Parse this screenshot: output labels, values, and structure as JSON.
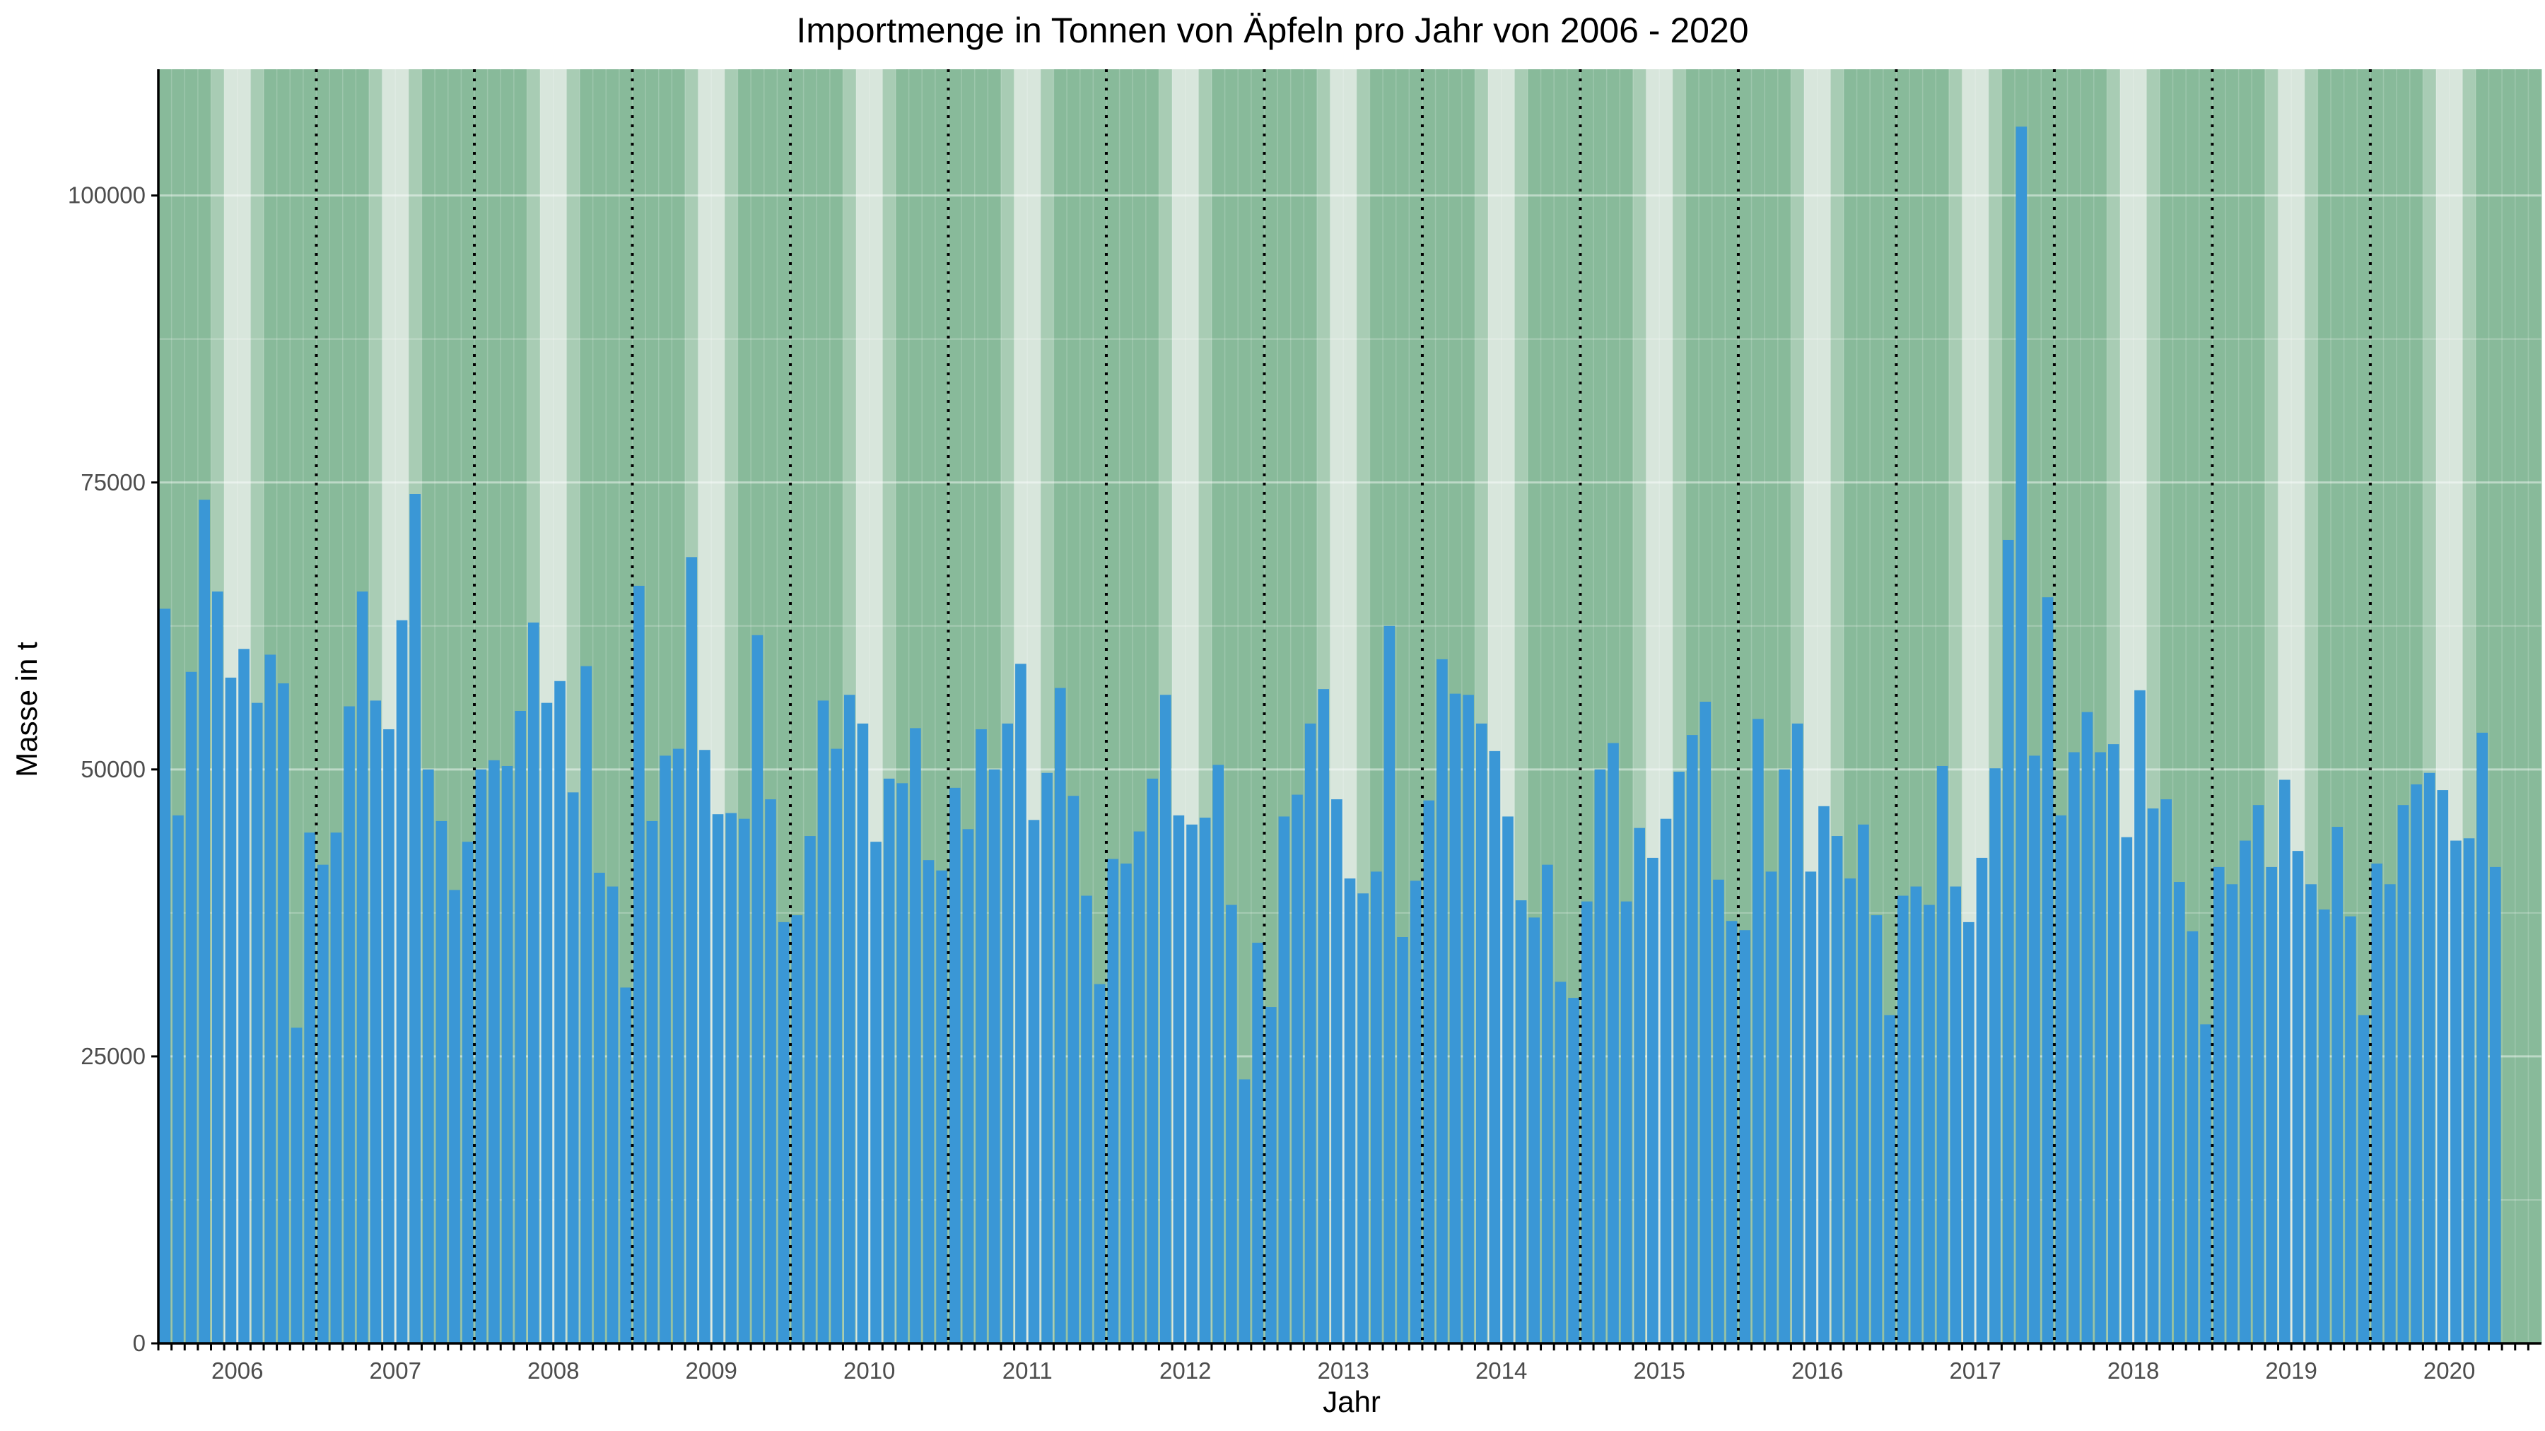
{
  "chart_data": {
    "type": "bar",
    "title": "Importmenge in Tonnen von Äpfeln pro Jahr von 2006 - 2020",
    "xlabel": "Jahr",
    "ylabel": "Masse in t",
    "ylim": [
      0,
      111000
    ],
    "yticks": [
      "0",
      "25000",
      "50000",
      "75000",
      "100000"
    ],
    "ytick_values": [
      0,
      25000,
      50000,
      75000,
      100000
    ],
    "years": [
      "2006",
      "2007",
      "2008",
      "2009",
      "2010",
      "2011",
      "2012",
      "2013",
      "2014",
      "2015",
      "2016",
      "2017",
      "2018",
      "2019",
      "2020"
    ],
    "months_per_year": 12,
    "values": [
      64000,
      46000,
      58500,
      73500,
      65500,
      58000,
      60500,
      55800,
      60000,
      57500,
      27500,
      44500,
      41700,
      44500,
      55500,
      65500,
      56000,
      53500,
      63000,
      74000,
      50000,
      45500,
      39500,
      43700,
      50000,
      50800,
      50300,
      55100,
      62800,
      55800,
      57700,
      48000,
      59000,
      41000,
      39800,
      31000,
      66000,
      45500,
      51200,
      51800,
      68500,
      51700,
      46100,
      46200,
      45700,
      61700,
      47400,
      36700,
      37300,
      44200,
      56000,
      51800,
      56500,
      54000,
      43700,
      49200,
      48800,
      53600,
      42100,
      41200,
      48400,
      44800,
      53500,
      50000,
      54000,
      59200,
      45600,
      49700,
      57100,
      47700,
      39000,
      31300,
      42200,
      41800,
      44600,
      49200,
      56500,
      46000,
      45200,
      45800,
      50400,
      38200,
      23000,
      34900,
      29300,
      45900,
      47800,
      54000,
      57000,
      47400,
      40500,
      39200,
      41100,
      62500,
      35400,
      40300,
      47300,
      59600,
      56600,
      56500,
      54000,
      51600,
      45900,
      38600,
      37100,
      41700,
      31500,
      30100,
      38500,
      50000,
      52300,
      38500,
      44900,
      42300,
      45700,
      49800,
      53000,
      55900,
      40400,
      36800,
      36000,
      54400,
      41100,
      50000,
      54000,
      41100,
      46800,
      44200,
      40500,
      45200,
      37300,
      28600,
      39000,
      39800,
      38200,
      50300,
      39800,
      36700,
      42300,
      50100,
      70000,
      106000,
      51200,
      65000,
      46000,
      51500,
      55000,
      51500,
      52200,
      44100,
      56900,
      46600,
      47400,
      40200,
      35900,
      27800,
      41500,
      40000,
      43800,
      46900,
      41500,
      49100,
      42900,
      40000,
      37800,
      45000,
      37200,
      28600,
      41800,
      40000,
      46900,
      48700,
      49700,
      48200,
      43800,
      44000,
      53200,
      41500
    ],
    "grid": true,
    "legend": "none",
    "colors": {
      "bar": "#3a97d6",
      "panel_dark": "#88ba9a",
      "panel_mid": "#a8ccb4",
      "panel_light": "#d8e6dc",
      "year_separator": "#000000",
      "gridline": "#ffffff",
      "axis": "#000000",
      "tick_text": "#4d4d4d"
    }
  }
}
